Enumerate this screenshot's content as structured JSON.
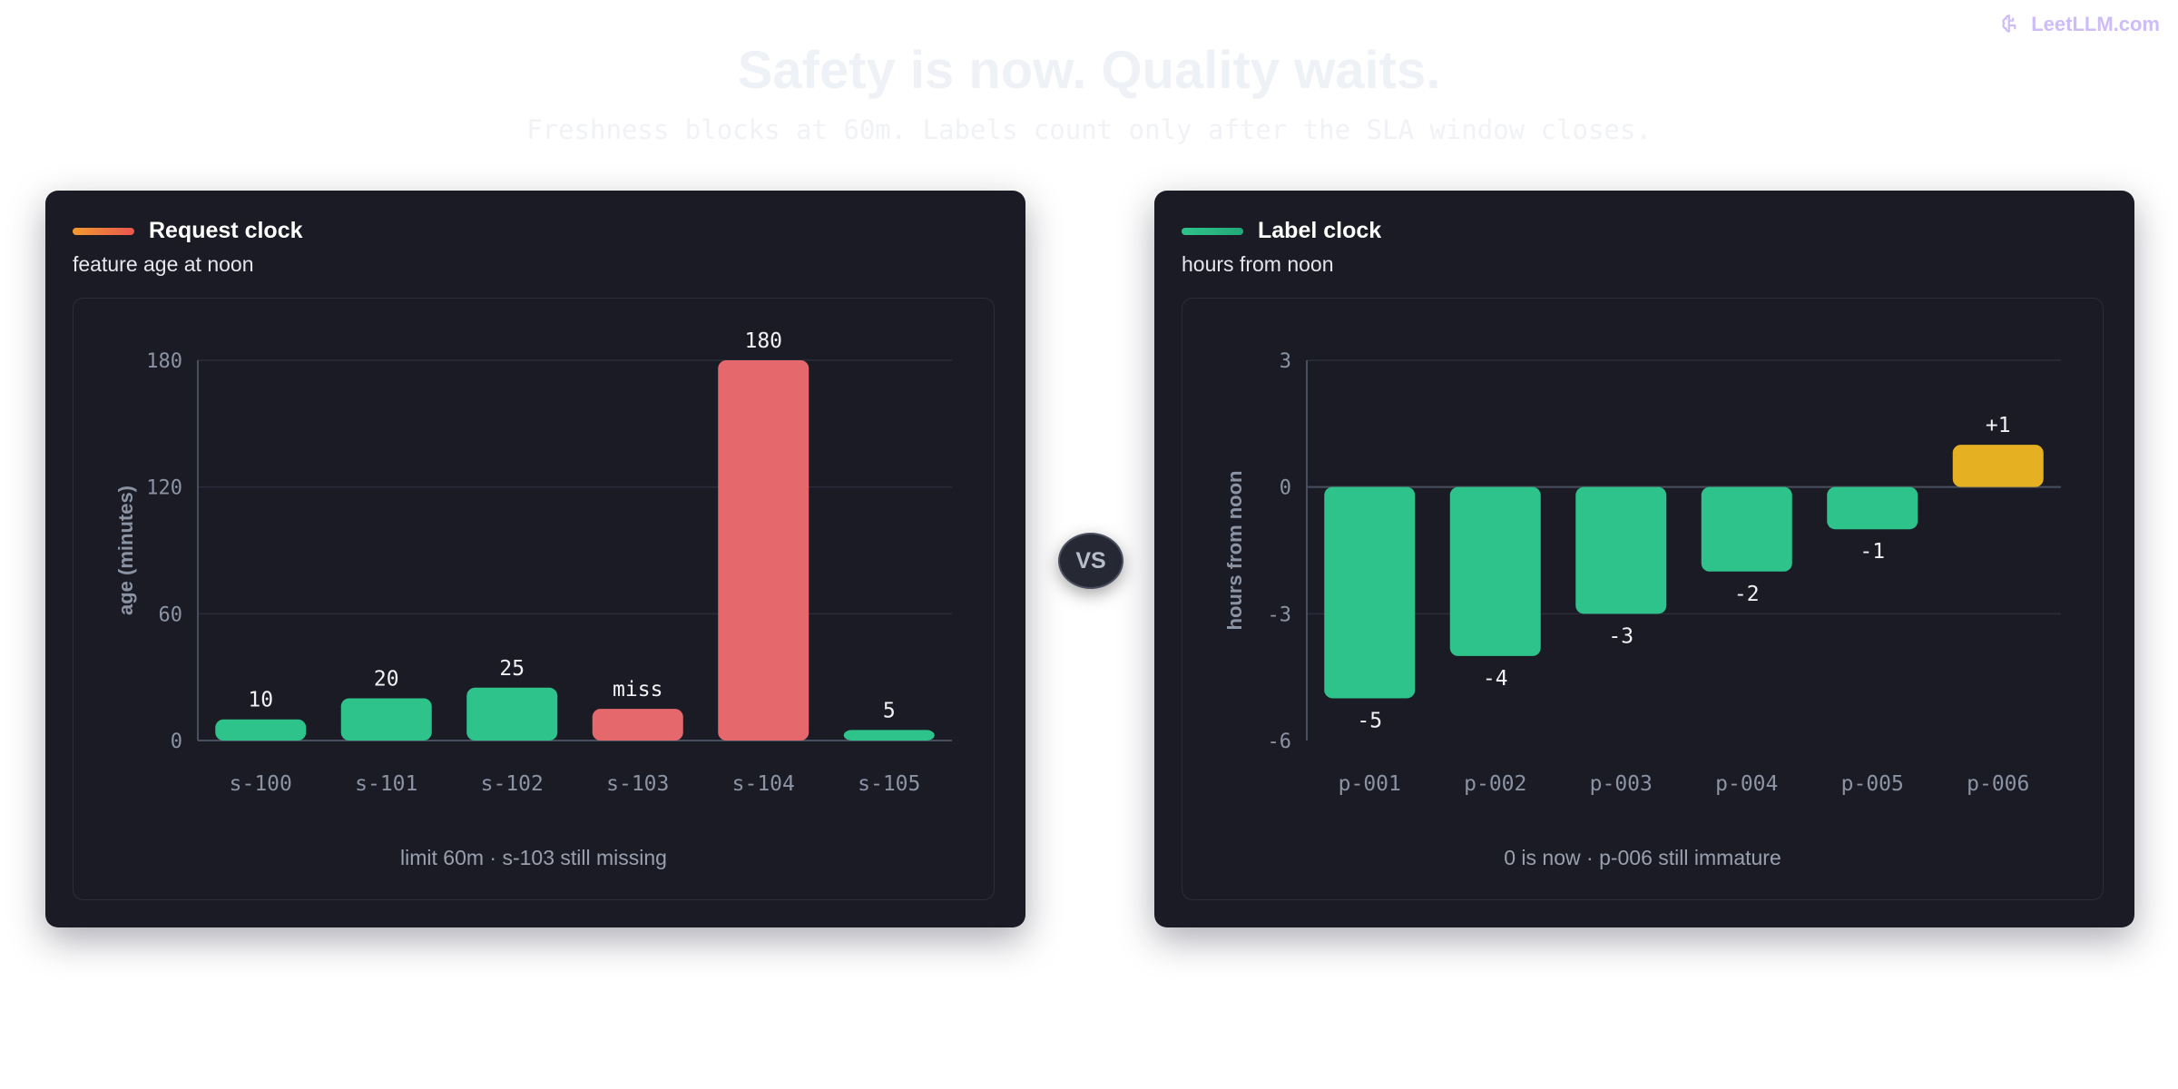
{
  "header": {
    "brand": "LeetLLM.com",
    "title": "Safety is now. Quality waits.",
    "subtitle": "Freshness blocks at 60m. Labels count only after the SLA window closes."
  },
  "vs_label": "VS",
  "colors": {
    "green": "#2ec38a",
    "red": "#e5696c",
    "amber": "#e6b023",
    "left_accent": [
      "#f39a2f",
      "#e8574f"
    ],
    "right_accent": [
      "#2ec38a",
      "#23a979"
    ]
  },
  "panels": [
    {
      "title": "Request clock",
      "subtitle": "feature age at noon",
      "note": "limit 60m · s-103 still missing"
    },
    {
      "title": "Label clock",
      "subtitle": "hours from noon",
      "note": "0 is now · p-006 still immature"
    }
  ],
  "chart_data": [
    {
      "type": "bar",
      "title": "Request clock",
      "subtitle": "feature age at noon",
      "xlabel": "",
      "ylabel": "age (minutes)",
      "ylim": [
        0,
        180
      ],
      "yticks": [
        0,
        60,
        120,
        180
      ],
      "categories": [
        "s-100",
        "s-101",
        "s-102",
        "s-103",
        "s-104",
        "s-105"
      ],
      "values": [
        10,
        20,
        25,
        15,
        180,
        5
      ],
      "labels": [
        "10",
        "20",
        "25",
        "miss",
        "180",
        "5"
      ],
      "status": [
        "ok",
        "ok",
        "ok",
        "bad",
        "bad",
        "ok"
      ],
      "grid": true
    },
    {
      "type": "bar",
      "title": "Label clock",
      "subtitle": "hours from noon",
      "xlabel": "",
      "ylabel": "hours from noon",
      "ylim": [
        -6,
        3
      ],
      "yticks": [
        -6,
        -3,
        0,
        3
      ],
      "categories": [
        "p-001",
        "p-002",
        "p-003",
        "p-004",
        "p-005",
        "p-006"
      ],
      "values": [
        -5,
        -4,
        -3,
        -2,
        -1,
        1
      ],
      "labels": [
        "-5",
        "-4",
        "-3",
        "-2",
        "-1",
        "+1"
      ],
      "status": [
        "ok",
        "ok",
        "ok",
        "ok",
        "ok",
        "pending"
      ],
      "grid": true
    }
  ]
}
